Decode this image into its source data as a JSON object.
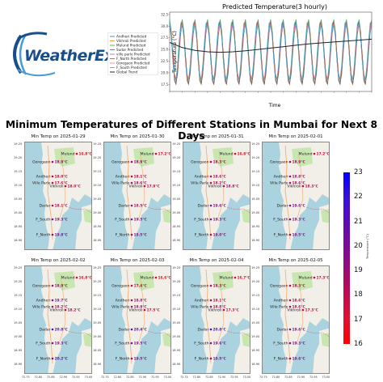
{
  "logo": {
    "text": "WeatherEx"
  },
  "top_chart": {
    "title": "Predicted Temperature(3 hourly)",
    "xlabel": "Time",
    "ylabel": "Temperature (°C)",
    "y_ticks": [
      "32.5",
      "30.0",
      "27.5",
      "25.0",
      "22.5",
      "20.0",
      "17.5"
    ],
    "legend": [
      {
        "name": "Andheri Predicted",
        "color": "#1f77b4"
      },
      {
        "name": "Vikhroli Predicted",
        "color": "#ff7f0e"
      },
      {
        "name": "Mulund Predicted",
        "color": "#2ca02c"
      },
      {
        "name": "Sudar Predicted",
        "color": "#d62728"
      },
      {
        "name": "ville parle Predicted",
        "color": "#9467bd"
      },
      {
        "name": "F_North Predicted",
        "color": "#8c564b"
      },
      {
        "name": "Goregaon Predicted",
        "color": "#e377c2"
      },
      {
        "name": "F_South Predicted",
        "color": "#17becf"
      },
      {
        "name": "Global Trend",
        "color": "#222222"
      }
    ],
    "chart_data": {
      "type": "line",
      "xlabel": "Time",
      "ylabel": "Temperature (°C)",
      "ylim": [
        16,
        33
      ],
      "series_pattern": "3-hourly predicted temperature oscillating daily between ~18 and ~31 °C for 8 stations over 16 days, with a global trend line",
      "cycles": 16,
      "global_trend": [
        26.5,
        25.4,
        24.8,
        24.5,
        24.4,
        24.5,
        24.7,
        25.0,
        25.3,
        25.6,
        25.9,
        26.2,
        26.4,
        26.6,
        26.8,
        27.0,
        27.2
      ]
    }
  },
  "main_title": "Minimum Temperatures of Different Stations in Mumbai for Next 8 Days",
  "panels": [
    {
      "title": "Min Temp on 2025-01-29",
      "temps": {
        "Mulund": "16.8°C",
        "Goregaon": "18.9°C",
        "Andheri": "18.0°C",
        "Ville Parle": "17.6°C",
        "Vikhroli": "18.0°C",
        "Dadar": "18.1°C",
        "F_South": "19.3°C",
        "F_North": "19.8°C"
      }
    },
    {
      "title": "Min Temp on 2025-01-30",
      "temps": {
        "Mulund": "17.2°C",
        "Goregaon": "18.9°C",
        "Andheri": "18.1°C",
        "Ville Parle": "18.6°C",
        "Vikhroli": "17.9°C",
        "Dadar": "18.5°C",
        "F_South": "19.5°C",
        "F_North": "19.5°C"
      }
    },
    {
      "title": "Min Temp on 2025-01-31",
      "temps": {
        "Mulund": "16.8°C",
        "Goregaon": "18.3°C",
        "Andheri": "18.6°C",
        "Ville Parle": "18.2°C",
        "Vikhroli": "18.8°C",
        "Dadar": "19.6°C",
        "F_South": "19.3°C",
        "F_North": "19.0°C"
      }
    },
    {
      "title": "Min Temp on 2025-02-01",
      "temps": {
        "Mulund": "17.2°C",
        "Goregaon": "18.9°C",
        "Andheri": "18.8°C",
        "Ville Parle": "18.6°C",
        "Vikhroli": "18.3°C",
        "Dadar": "19.6°C",
        "F_South": "19.3°C",
        "F_North": "19.5°C"
      }
    },
    {
      "title": "Min Temp on 2025-02-02",
      "temps": {
        "Mulund": "16.8°C",
        "Goregaon": "18.9°C",
        "Andheri": "19.7°C",
        "Ville Parle": "18.2°C",
        "Vikhroli": "18.2°C",
        "Dadar": "20.8°C",
        "F_South": "19.3°C",
        "F_North": "20.2°C"
      }
    },
    {
      "title": "Min Temp on 2025-02-03",
      "temps": {
        "Mulund": "16.6°C",
        "Goregaon": "17.4°C",
        "Andheri": "18.8°C",
        "Ville Parle": "18.9°C",
        "Vikhroli": "17.5°C",
        "Dadar": "20.4°C",
        "F_South": "19.5°C",
        "F_North": "19.5°C"
      }
    },
    {
      "title": "Min Temp on 2025-02-04",
      "temps": {
        "Mulund": "16.7°C",
        "Goregaon": "18.3°C",
        "Andheri": "18.1°C",
        "Ville Parle": "18.8°C",
        "Vikhroli": "17.3°C",
        "Dadar": "20.8°C",
        "F_South": "19.6°C",
        "F_North": "19.5°C"
      }
    },
    {
      "title": "Min Temp on 2025-02-05",
      "temps": {
        "Mulund": "17.3°C",
        "Goregaon": "18.3°C",
        "Andheri": "18.6°C",
        "Ville Parle": "18.6°C",
        "Vikhroli": "17.3°C",
        "Dadar": "19.6°C",
        "F_South": "19.3°C",
        "F_North": "19.6°C"
      }
    }
  ],
  "map_axes": {
    "y_ticks": [
      "19.25",
      "19.20",
      "19.15",
      "19.10",
      "19.05",
      "19.00",
      "18.95",
      "18.90"
    ],
    "x_ticks": [
      "72.75",
      "72.80",
      "72.85",
      "72.90",
      "72.95",
      "73.00"
    ]
  },
  "colorbar": {
    "label": "Temperature (°C)",
    "ticks": [
      "23",
      "22",
      "21",
      "20",
      "19",
      "18",
      "17",
      "16"
    ],
    "colors": {
      "top": "#1a1aff",
      "mid": "#8a0a8a",
      "bottom": "#ff1a1a"
    },
    "range": [
      16,
      23
    ]
  },
  "colors": {
    "sea": "#aad3df",
    "land": "#f2efe9",
    "green": "#c8e6b0",
    "road": "#f4a86a"
  }
}
